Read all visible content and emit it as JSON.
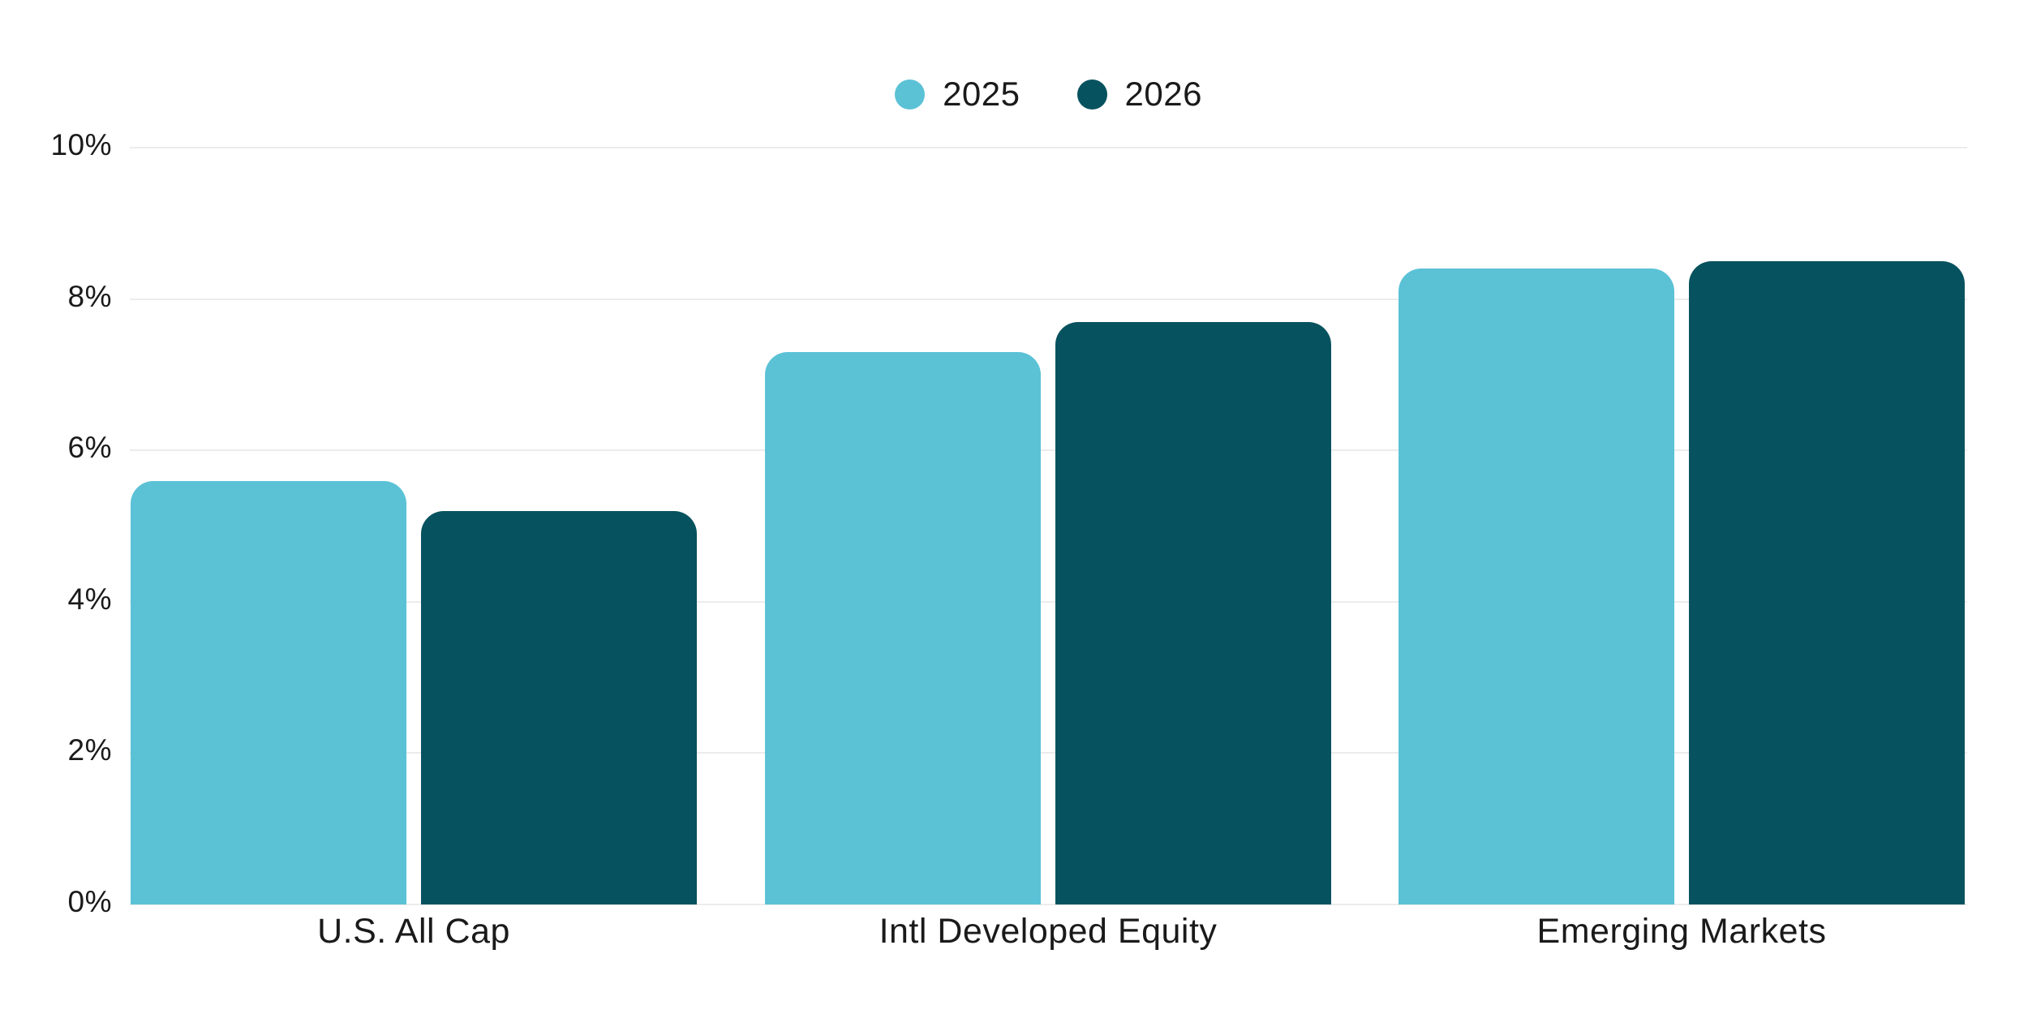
{
  "chart_data": {
    "type": "bar",
    "title": "",
    "categories": [
      "U.S. All Cap",
      "Intl Developed Equity",
      "Emerging Markets"
    ],
    "series": [
      {
        "name": "2025",
        "color": "#5BC2D6",
        "values": [
          5.6,
          7.3,
          8.4
        ]
      },
      {
        "name": "2026",
        "color": "#07525F",
        "values": [
          5.2,
          7.7,
          8.5
        ]
      }
    ],
    "xlabel": "",
    "ylabel": "",
    "ylim": [
      0,
      10
    ],
    "yticks": [
      {
        "value": 0,
        "label": "0%"
      },
      {
        "value": 2,
        "label": "2%"
      },
      {
        "value": 4,
        "label": "4%"
      },
      {
        "value": 6,
        "label": "6%"
      },
      {
        "value": 8,
        "label": "8%"
      },
      {
        "value": 10,
        "label": "10%"
      }
    ],
    "grid": true,
    "legend_position": "top-center"
  },
  "colors": {
    "background": "#ffffff",
    "gridline": "#ececec",
    "text": "#1a1a1a",
    "series_2025": "#5BC2D6",
    "series_2026": "#07525F"
  }
}
